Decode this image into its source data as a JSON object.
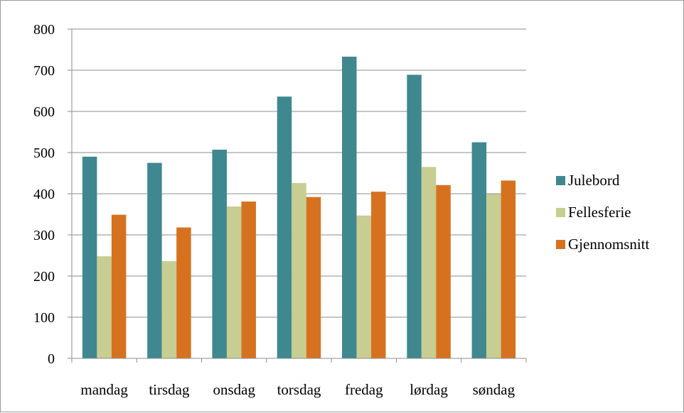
{
  "chart_data": {
    "type": "bar",
    "title": "",
    "xlabel": "",
    "ylabel": "",
    "categories": [
      "mandag",
      "tirsdag",
      "onsdag",
      "torsdag",
      "fredag",
      "lørdag",
      "søndag"
    ],
    "series": [
      {
        "name": "Julebord",
        "color": "#3F888F",
        "values": [
          490,
          475,
          507,
          636,
          733,
          689,
          525
        ]
      },
      {
        "name": "Fellesferie",
        "color": "#C8CD91",
        "values": [
          248,
          236,
          369,
          426,
          347,
          465,
          399
        ]
      },
      {
        "name": "Gjennomsnitt",
        "color": "#D6721F",
        "values": [
          349,
          318,
          381,
          392,
          405,
          421,
          432
        ]
      }
    ],
    "ylim": [
      0,
      800
    ],
    "yticks": [
      0,
      100,
      200,
      300,
      400,
      500,
      600,
      700,
      800
    ],
    "grid": true,
    "legend_position": "right"
  }
}
